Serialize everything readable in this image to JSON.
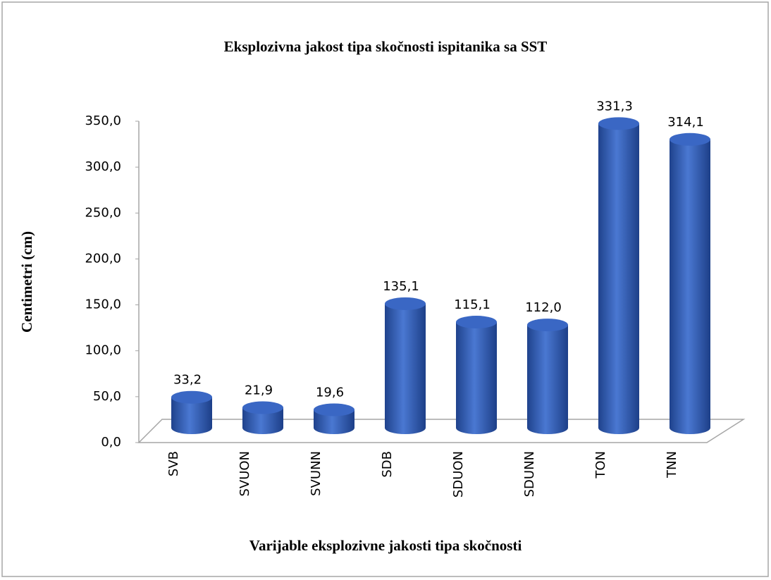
{
  "chart_data": {
    "type": "bar",
    "title": "Eksplozivna jakost tipa skočnosti ispitanika sa SST",
    "y_label": "Centimetri (cm)",
    "x_label": "Varijable eksplozivne jakosti tipa skočnosti",
    "categories": [
      "SVB",
      "SVUON",
      "SVUNN",
      "SDB",
      "SDUON",
      "SDUNN",
      "TON",
      "TNN"
    ],
    "values": [
      33.2,
      21.9,
      19.6,
      135.1,
      115.1,
      112.0,
      331.3,
      314.1
    ],
    "value_labels": [
      "33,2",
      "21,9",
      "19,6",
      "135,1",
      "115,1",
      "112,0",
      "331,3",
      "314,1"
    ],
    "color": "#3a67c4",
    "ylim": [
      0,
      350
    ],
    "yticks": [
      {
        "value": 0,
        "label": "0,0"
      },
      {
        "value": 50,
        "label": "50,0"
      },
      {
        "value": 100,
        "label": "100,0"
      },
      {
        "value": 150,
        "label": "150,0"
      },
      {
        "value": 200,
        "label": "200,0"
      },
      {
        "value": 250,
        "label": "250,0"
      },
      {
        "value": 300,
        "label": "300,0"
      },
      {
        "value": 350,
        "label": "350,0"
      }
    ],
    "grid": false
  }
}
